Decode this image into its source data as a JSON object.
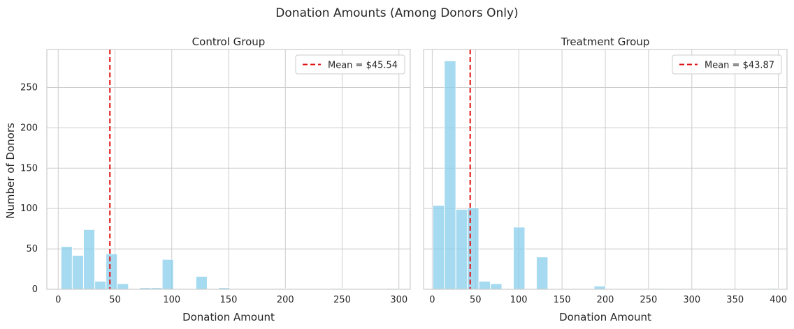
{
  "chart_data": {
    "type": "bar",
    "title": "Donation Amounts (Among Donors Only)",
    "ylabel": "Number of Donors",
    "grid": true,
    "panels": [
      {
        "title": "Control Group",
        "xlabel": "Donation Amount",
        "xlim": [
          -10,
          310
        ],
        "ylim": [
          0,
          297
        ],
        "xticks": [
          0,
          50,
          100,
          150,
          200,
          250,
          300
        ],
        "yticks": [
          0,
          50,
          100,
          150,
          200,
          250
        ],
        "bin_width": 9.9,
        "bins": [
          {
            "x0": 2.5,
            "count": 53
          },
          {
            "x0": 12.4,
            "count": 42
          },
          {
            "x0": 22.3,
            "count": 74
          },
          {
            "x0": 32.2,
            "count": 10
          },
          {
            "x0": 42.1,
            "count": 44
          },
          {
            "x0": 52.0,
            "count": 7
          },
          {
            "x0": 71.8,
            "count": 2
          },
          {
            "x0": 81.7,
            "count": 2
          },
          {
            "x0": 91.6,
            "count": 37
          },
          {
            "x0": 121.3,
            "count": 16
          },
          {
            "x0": 141.1,
            "count": 2
          },
          {
            "x0": 190.6,
            "count": 1
          },
          {
            "x0": 240.1,
            "count": 1
          },
          {
            "x0": 289.6,
            "count": 1
          }
        ],
        "bar_color": "#87CEEB",
        "mean": 45.54,
        "mean_color": "#e01010",
        "legend": "Mean = $45.54",
        "legend_position": "top-right"
      },
      {
        "title": "Treatment Group",
        "xlabel": "Donation Amount",
        "xlim": [
          -10,
          410
        ],
        "ylim": [
          0,
          297
        ],
        "xticks": [
          0,
          50,
          100,
          150,
          200,
          250,
          300,
          350,
          400
        ],
        "yticks": [
          0,
          50,
          100,
          150,
          200,
          250
        ],
        "bin_width": 13.3,
        "bins": [
          {
            "x0": 0.7,
            "count": 104
          },
          {
            "x0": 14.0,
            "count": 283
          },
          {
            "x0": 27.3,
            "count": 99
          },
          {
            "x0": 40.6,
            "count": 101
          },
          {
            "x0": 53.9,
            "count": 10
          },
          {
            "x0": 67.2,
            "count": 7
          },
          {
            "x0": 93.8,
            "count": 77
          },
          {
            "x0": 120.4,
            "count": 40
          },
          {
            "x0": 187.0,
            "count": 4
          },
          {
            "x0": 253.5,
            "count": 1
          },
          {
            "x0": 386.5,
            "count": 1
          }
        ],
        "bar_color": "#87CEEB",
        "mean": 43.87,
        "mean_color": "#e01010",
        "legend": "Mean = $43.87",
        "legend_position": "top-right"
      }
    ]
  }
}
